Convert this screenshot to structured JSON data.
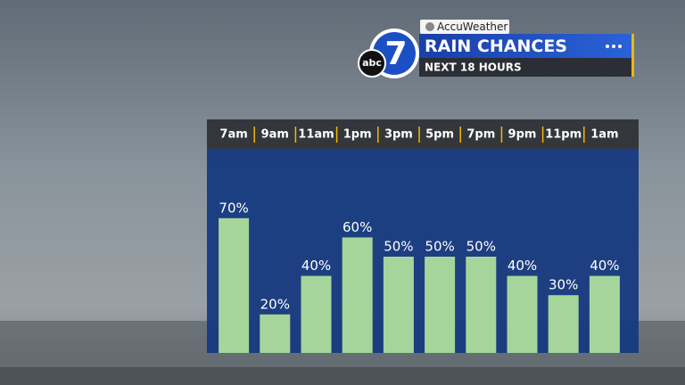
{
  "brand": "AccuWeather",
  "logo": {
    "network": "abc",
    "channel": "7"
  },
  "chart_data": {
    "type": "bar",
    "title": "RAIN CHANCES",
    "subtitle": "NEXT 18 HOURS",
    "categories": [
      "7am",
      "9am",
      "11am",
      "1pm",
      "3pm",
      "5pm",
      "7pm",
      "9pm",
      "11pm",
      "1am"
    ],
    "values": [
      70,
      20,
      40,
      60,
      50,
      50,
      50,
      40,
      30,
      40
    ],
    "value_labels": [
      "70%",
      "20%",
      "40%",
      "60%",
      "50%",
      "50%",
      "50%",
      "40%",
      "30%",
      "40%"
    ],
    "color": "#a5d59a"
  }
}
